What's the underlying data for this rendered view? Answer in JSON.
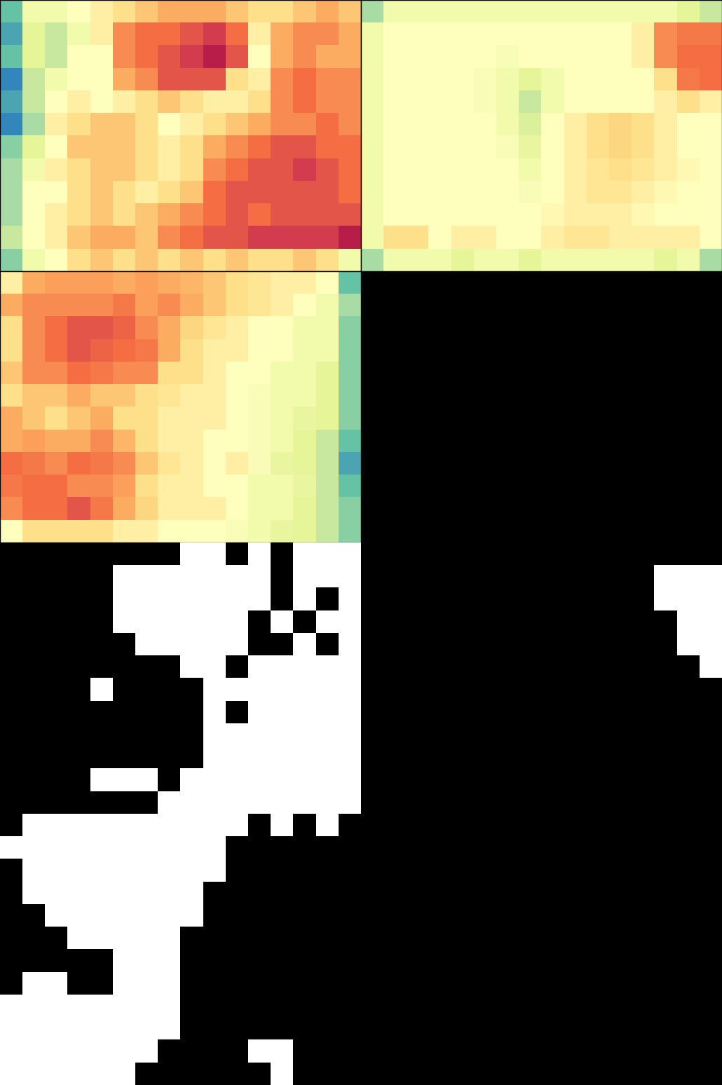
{
  "chart_data": [
    {
      "type": "heatmap",
      "clim": [
        0,
        1
      ],
      "tick_labels": false,
      "cells": [
        [
          0.2,
          0.45,
          0.45,
          0.5,
          0.55,
          0.6,
          0.65,
          0.7,
          0.7,
          0.7,
          0.65,
          0.6,
          0.6,
          0.65,
          0.7,
          0.65
        ],
        [
          0.15,
          0.4,
          0.35,
          0.45,
          0.55,
          0.75,
          0.8,
          0.8,
          0.85,
          0.9,
          0.8,
          0.55,
          0.7,
          0.75,
          0.75,
          0.7
        ],
        [
          0.2,
          0.4,
          0.35,
          0.5,
          0.5,
          0.75,
          0.8,
          0.85,
          0.9,
          0.95,
          0.85,
          0.5,
          0.7,
          0.75,
          0.7,
          0.7
        ],
        [
          0.1,
          0.35,
          0.45,
          0.5,
          0.5,
          0.7,
          0.75,
          0.85,
          0.85,
          0.85,
          0.6,
          0.55,
          0.75,
          0.8,
          0.75,
          0.75
        ],
        [
          0.15,
          0.35,
          0.5,
          0.55,
          0.5,
          0.55,
          0.6,
          0.65,
          0.6,
          0.55,
          0.55,
          0.6,
          0.75,
          0.8,
          0.75,
          0.75
        ],
        [
          0.1,
          0.3,
          0.55,
          0.6,
          0.65,
          0.65,
          0.6,
          0.5,
          0.55,
          0.6,
          0.65,
          0.7,
          0.75,
          0.75,
          0.8,
          0.75
        ],
        [
          0.25,
          0.4,
          0.5,
          0.65,
          0.65,
          0.65,
          0.6,
          0.55,
          0.6,
          0.7,
          0.75,
          0.8,
          0.85,
          0.85,
          0.8,
          0.8
        ],
        [
          0.3,
          0.45,
          0.55,
          0.6,
          0.65,
          0.65,
          0.6,
          0.55,
          0.6,
          0.75,
          0.8,
          0.85,
          0.85,
          0.9,
          0.85,
          0.8
        ],
        [
          0.3,
          0.5,
          0.5,
          0.6,
          0.65,
          0.6,
          0.55,
          0.6,
          0.65,
          0.8,
          0.85,
          0.85,
          0.85,
          0.85,
          0.85,
          0.8
        ],
        [
          0.3,
          0.5,
          0.55,
          0.6,
          0.65,
          0.6,
          0.65,
          0.7,
          0.75,
          0.8,
          0.85,
          0.8,
          0.85,
          0.85,
          0.85,
          0.85
        ],
        [
          0.35,
          0.5,
          0.55,
          0.65,
          0.7,
          0.7,
          0.65,
          0.75,
          0.8,
          0.85,
          0.85,
          0.9,
          0.9,
          0.9,
          0.9,
          0.95
        ],
        [
          0.25,
          0.45,
          0.5,
          0.6,
          0.65,
          0.6,
          0.65,
          0.6,
          0.65,
          0.6,
          0.65,
          0.6,
          0.6,
          0.65,
          0.6,
          0.45
        ]
      ]
    },
    {
      "type": "heatmap",
      "clim": [
        0,
        1
      ],
      "tick_labels": false,
      "cells": [
        [
          0.3,
          0.45,
          0.45,
          0.45,
          0.45,
          0.45,
          0.45,
          0.45,
          0.45,
          0.45,
          0.45,
          0.45,
          0.45,
          0.45,
          0.4,
          0.35
        ],
        [
          0.45,
          0.5,
          0.5,
          0.5,
          0.5,
          0.5,
          0.5,
          0.5,
          0.5,
          0.5,
          0.5,
          0.5,
          0.55,
          0.75,
          0.78,
          0.78
        ],
        [
          0.45,
          0.5,
          0.5,
          0.5,
          0.5,
          0.5,
          0.48,
          0.5,
          0.5,
          0.5,
          0.5,
          0.5,
          0.55,
          0.75,
          0.8,
          0.8
        ],
        [
          0.45,
          0.5,
          0.5,
          0.5,
          0.5,
          0.48,
          0.45,
          0.4,
          0.45,
          0.5,
          0.5,
          0.5,
          0.5,
          0.6,
          0.78,
          0.8
        ],
        [
          0.45,
          0.5,
          0.5,
          0.5,
          0.5,
          0.48,
          0.45,
          0.35,
          0.45,
          0.5,
          0.5,
          0.5,
          0.5,
          0.55,
          0.6,
          0.55
        ],
        [
          0.45,
          0.5,
          0.5,
          0.5,
          0.5,
          0.5,
          0.45,
          0.38,
          0.5,
          0.55,
          0.6,
          0.62,
          0.6,
          0.55,
          0.5,
          0.5
        ],
        [
          0.45,
          0.5,
          0.5,
          0.5,
          0.5,
          0.5,
          0.48,
          0.42,
          0.5,
          0.55,
          0.6,
          0.62,
          0.6,
          0.55,
          0.5,
          0.5
        ],
        [
          0.45,
          0.5,
          0.5,
          0.5,
          0.5,
          0.5,
          0.5,
          0.45,
          0.5,
          0.55,
          0.58,
          0.6,
          0.58,
          0.55,
          0.52,
          0.5
        ],
        [
          0.45,
          0.5,
          0.5,
          0.5,
          0.5,
          0.5,
          0.5,
          0.48,
          0.5,
          0.55,
          0.58,
          0.58,
          0.55,
          0.52,
          0.5,
          0.5
        ],
        [
          0.45,
          0.5,
          0.5,
          0.5,
          0.5,
          0.5,
          0.5,
          0.5,
          0.52,
          0.55,
          0.55,
          0.55,
          0.52,
          0.5,
          0.5,
          0.5
        ],
        [
          0.45,
          0.6,
          0.6,
          0.5,
          0.55,
          0.55,
          0.5,
          0.5,
          0.55,
          0.58,
          0.58,
          0.55,
          0.55,
          0.55,
          0.55,
          0.5
        ],
        [
          0.3,
          0.45,
          0.45,
          0.45,
          0.4,
          0.45,
          0.45,
          0.4,
          0.45,
          0.45,
          0.45,
          0.45,
          0.45,
          0.4,
          0.45,
          0.3
        ]
      ]
    },
    {
      "type": "heatmap",
      "clim": [
        0,
        1
      ],
      "tick_labels": false,
      "cells": [
        [
          0.55,
          0.7,
          0.72,
          0.72,
          0.72,
          0.7,
          0.72,
          0.7,
          0.68,
          0.65,
          0.6,
          0.58,
          0.55,
          0.55,
          0.5,
          0.2
        ],
        [
          0.7,
          0.75,
          0.75,
          0.75,
          0.75,
          0.78,
          0.72,
          0.75,
          0.7,
          0.65,
          0.6,
          0.58,
          0.55,
          0.5,
          0.45,
          0.3
        ],
        [
          0.6,
          0.75,
          0.8,
          0.85,
          0.85,
          0.82,
          0.75,
          0.7,
          0.62,
          0.58,
          0.55,
          0.5,
          0.5,
          0.45,
          0.45,
          0.25
        ],
        [
          0.6,
          0.75,
          0.8,
          0.85,
          0.82,
          0.8,
          0.78,
          0.7,
          0.6,
          0.55,
          0.55,
          0.5,
          0.5,
          0.45,
          0.45,
          0.25
        ],
        [
          0.65,
          0.75,
          0.75,
          0.8,
          0.78,
          0.75,
          0.75,
          0.6,
          0.6,
          0.55,
          0.5,
          0.5,
          0.45,
          0.45,
          0.4,
          0.25
        ],
        [
          0.6,
          0.65,
          0.65,
          0.7,
          0.65,
          0.65,
          0.6,
          0.58,
          0.55,
          0.55,
          0.5,
          0.48,
          0.45,
          0.45,
          0.4,
          0.25
        ],
        [
          0.7,
          0.65,
          0.6,
          0.65,
          0.7,
          0.6,
          0.6,
          0.55,
          0.55,
          0.55,
          0.5,
          0.48,
          0.45,
          0.42,
          0.4,
          0.25
        ],
        [
          0.7,
          0.72,
          0.7,
          0.7,
          0.75,
          0.68,
          0.6,
          0.55,
          0.55,
          0.5,
          0.5,
          0.48,
          0.45,
          0.4,
          0.35,
          0.2
        ],
        [
          0.8,
          0.78,
          0.75,
          0.8,
          0.78,
          0.75,
          0.65,
          0.58,
          0.55,
          0.5,
          0.55,
          0.48,
          0.42,
          0.4,
          0.35,
          0.15
        ],
        [
          0.78,
          0.8,
          0.8,
          0.75,
          0.75,
          0.72,
          0.6,
          0.55,
          0.55,
          0.5,
          0.5,
          0.45,
          0.45,
          0.42,
          0.35,
          0.2
        ],
        [
          0.75,
          0.8,
          0.8,
          0.85,
          0.78,
          0.7,
          0.62,
          0.55,
          0.55,
          0.55,
          0.5,
          0.45,
          0.45,
          0.4,
          0.35,
          0.25
        ],
        [
          0.5,
          0.6,
          0.6,
          0.6,
          0.6,
          0.55,
          0.55,
          0.5,
          0.5,
          0.5,
          0.48,
          0.45,
          0.42,
          0.4,
          0.35,
          0.25
        ]
      ]
    },
    {
      "type": "mask",
      "tick_labels": false,
      "cells": [
        [
          0,
          0,
          0,
          0,
          0,
          0,
          0,
          0,
          1,
          1,
          0,
          1,
          0,
          1,
          1,
          1
        ],
        [
          0,
          0,
          0,
          0,
          0,
          1,
          1,
          1,
          1,
          1,
          1,
          1,
          0,
          1,
          1,
          1
        ],
        [
          0,
          0,
          0,
          0,
          0,
          1,
          1,
          1,
          1,
          1,
          1,
          1,
          0,
          1,
          0,
          1
        ],
        [
          0,
          0,
          0,
          0,
          0,
          1,
          1,
          1,
          1,
          1,
          1,
          0,
          1,
          0,
          1,
          1
        ],
        [
          0,
          0,
          0,
          0,
          0,
          0,
          1,
          1,
          1,
          1,
          1,
          0,
          0,
          1,
          0,
          1
        ],
        [
          0,
          0,
          0,
          0,
          0,
          0,
          0,
          0,
          1,
          1,
          0,
          1,
          1,
          1,
          1,
          1
        ],
        [
          0,
          0,
          0,
          0,
          1,
          0,
          0,
          0,
          0,
          1,
          1,
          1,
          1,
          1,
          1,
          1
        ],
        [
          0,
          0,
          0,
          0,
          0,
          0,
          0,
          0,
          0,
          1,
          0,
          1,
          1,
          1,
          1,
          1
        ],
        [
          0,
          0,
          0,
          0,
          0,
          0,
          0,
          0,
          0,
          1,
          1,
          1,
          1,
          1,
          1,
          1
        ],
        [
          0,
          0,
          0,
          0,
          0,
          0,
          0,
          0,
          0,
          1,
          1,
          1,
          1,
          1,
          1,
          1
        ],
        [
          0,
          0,
          0,
          0,
          1,
          1,
          1,
          0,
          1,
          1,
          1,
          1,
          1,
          1,
          1,
          1
        ],
        [
          0,
          0,
          0,
          0,
          0,
          0,
          0,
          1,
          1,
          1,
          1,
          1,
          1,
          1,
          1,
          1
        ]
      ]
    },
    {
      "type": "mask",
      "tick_labels": false,
      "cells": [
        [
          0,
          0,
          0,
          0,
          0,
          0,
          0,
          0,
          0,
          0,
          0,
          0,
          0,
          0,
          0,
          0
        ],
        [
          0,
          0,
          0,
          0,
          0,
          0,
          0,
          0,
          0,
          0,
          0,
          0,
          0,
          1,
          1,
          1
        ],
        [
          0,
          0,
          0,
          0,
          0,
          0,
          0,
          0,
          0,
          0,
          0,
          0,
          0,
          1,
          1,
          1
        ],
        [
          0,
          0,
          0,
          0,
          0,
          0,
          0,
          0,
          0,
          0,
          0,
          0,
          0,
          0,
          1,
          1
        ],
        [
          0,
          0,
          0,
          0,
          0,
          0,
          0,
          0,
          0,
          0,
          0,
          0,
          0,
          0,
          1,
          1
        ],
        [
          0,
          0,
          0,
          0,
          0,
          0,
          0,
          0,
          0,
          0,
          0,
          0,
          0,
          0,
          0,
          1
        ],
        [
          0,
          0,
          0,
          0,
          0,
          0,
          0,
          0,
          0,
          0,
          0,
          0,
          0,
          0,
          0,
          0
        ],
        [
          0,
          0,
          0,
          0,
          0,
          0,
          0,
          0,
          0,
          0,
          0,
          0,
          0,
          0,
          0,
          0
        ],
        [
          0,
          0,
          0,
          0,
          0,
          0,
          0,
          0,
          0,
          0,
          0,
          0,
          0,
          0,
          0,
          0
        ],
        [
          0,
          0,
          0,
          0,
          0,
          0,
          0,
          0,
          0,
          0,
          0,
          0,
          0,
          0,
          0,
          0
        ],
        [
          0,
          0,
          0,
          0,
          0,
          0,
          0,
          0,
          0,
          0,
          0,
          0,
          0,
          0,
          0,
          0
        ],
        [
          0,
          0,
          0,
          0,
          0,
          0,
          0,
          0,
          0,
          0,
          0,
          0,
          0,
          0,
          0,
          0
        ]
      ]
    },
    {
      "type": "mask",
      "tick_labels": false,
      "cells": [
        [
          0,
          1,
          1,
          1,
          1,
          1,
          1,
          1,
          1,
          1,
          1,
          0,
          1,
          0,
          1,
          0
        ],
        [
          1,
          1,
          1,
          1,
          1,
          1,
          1,
          1,
          1,
          1,
          0,
          0,
          0,
          0,
          0,
          0
        ],
        [
          0,
          1,
          1,
          1,
          1,
          1,
          1,
          1,
          1,
          1,
          0,
          0,
          0,
          0,
          0,
          0
        ],
        [
          0,
          1,
          1,
          1,
          1,
          1,
          1,
          1,
          1,
          0,
          0,
          0,
          0,
          0,
          0,
          0
        ],
        [
          0,
          0,
          1,
          1,
          1,
          1,
          1,
          1,
          1,
          0,
          0,
          0,
          0,
          0,
          0,
          0
        ],
        [
          0,
          0,
          0,
          1,
          1,
          1,
          1,
          1,
          0,
          0,
          0,
          0,
          0,
          0,
          0,
          0
        ],
        [
          0,
          0,
          0,
          0,
          0,
          1,
          1,
          1,
          0,
          0,
          0,
          0,
          0,
          0,
          0,
          0
        ],
        [
          0,
          1,
          1,
          0,
          0,
          1,
          1,
          1,
          0,
          0,
          0,
          0,
          0,
          0,
          0,
          0
        ],
        [
          1,
          1,
          1,
          1,
          1,
          1,
          1,
          1,
          0,
          0,
          0,
          0,
          0,
          0,
          0,
          0
        ],
        [
          1,
          1,
          1,
          1,
          1,
          1,
          1,
          1,
          0,
          0,
          0,
          0,
          0,
          0,
          0,
          0
        ],
        [
          1,
          1,
          1,
          1,
          1,
          1,
          1,
          0,
          0,
          0,
          0,
          1,
          1,
          0,
          0,
          0
        ],
        [
          1,
          1,
          1,
          1,
          1,
          1,
          0,
          0,
          0,
          0,
          0,
          0,
          1,
          0,
          0,
          0
        ]
      ]
    }
  ]
}
